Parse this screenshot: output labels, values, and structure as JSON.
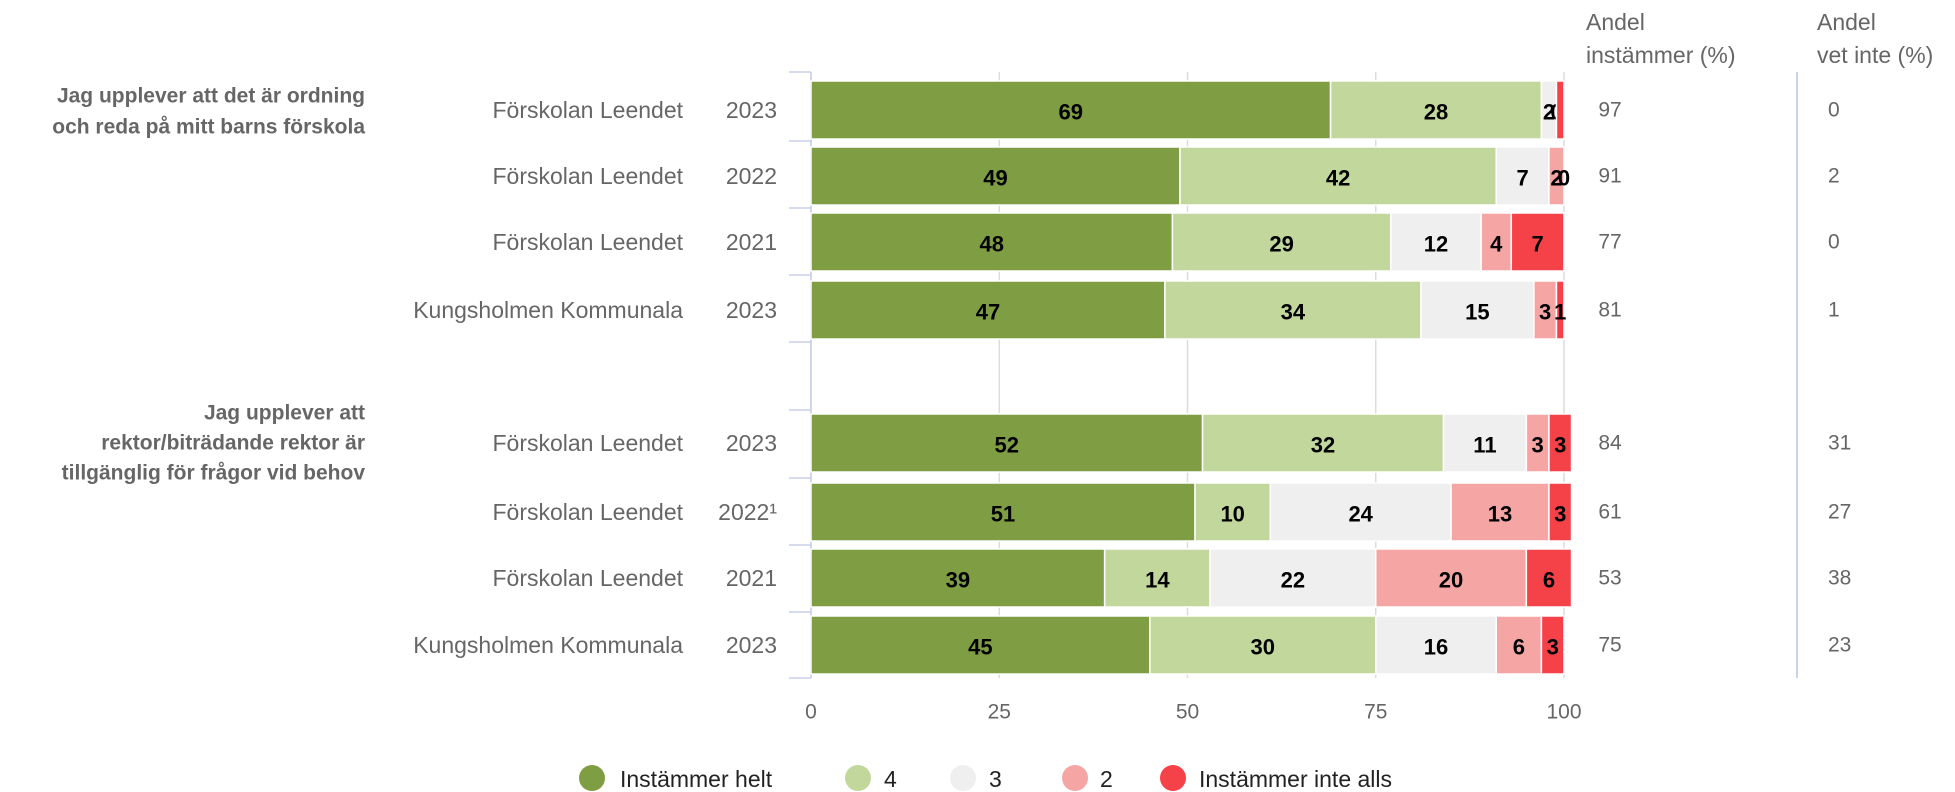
{
  "chart_data": {
    "type": "bar",
    "orientation": "horizontal",
    "stacked": true,
    "xlim": [
      0,
      100
    ],
    "xticks": [
      0,
      25,
      50,
      75,
      100
    ],
    "grid": true,
    "legend_position": "bottom",
    "column_headers": {
      "agree": [
        "Andel",
        "instämmer (%)"
      ],
      "dont_know": [
        "Andel",
        "vet inte (%)"
      ]
    },
    "series": [
      {
        "name": "Instämmer helt",
        "color": "#7f9e43"
      },
      {
        "name": "4",
        "color": "#c2d79b"
      },
      {
        "name": "3",
        "color": "#efefef"
      },
      {
        "name": "2",
        "color": "#f6a5a5"
      },
      {
        "name": "Instämmer inte alls",
        "color": "#f54248"
      }
    ],
    "groups": [
      {
        "question": [
          "Jag upplever att det är ordning",
          "och reda på mitt barns förskola"
        ],
        "rows": [
          {
            "unit": "Förskolan Leendet",
            "year": "2023",
            "values": [
              69,
              28,
              2,
              0,
              1
            ],
            "labels": [
              "69",
              "28",
              "2",
              "0",
              ""
            ],
            "agree": "97",
            "dont_know": "0"
          },
          {
            "unit": "Förskolan Leendet",
            "year": "2022",
            "values": [
              49,
              42,
              7,
              2,
              0
            ],
            "labels": [
              "49",
              "42",
              "7",
              "2",
              "0"
            ],
            "agree": "91",
            "dont_know": "2"
          },
          {
            "unit": "Förskolan Leendet",
            "year": "2021",
            "values": [
              48,
              29,
              12,
              4,
              7
            ],
            "labels": [
              "48",
              "29",
              "12",
              "4",
              "7"
            ],
            "agree": "77",
            "dont_know": "0"
          },
          {
            "unit": "Kungsholmen Kommunala",
            "year": "2023",
            "values": [
              47,
              34,
              15,
              3,
              1
            ],
            "labels": [
              "47",
              "34",
              "15",
              "3",
              "1"
            ],
            "agree": "81",
            "dont_know": "1"
          }
        ]
      },
      {
        "question": [
          "Jag upplever att",
          "rektor/biträdande rektor är",
          "tillgänglig för frågor vid behov"
        ],
        "rows": [
          {
            "unit": "Förskolan Leendet",
            "year": "2023",
            "values": [
              52,
              32,
              11,
              3,
              3
            ],
            "labels": [
              "52",
              "32",
              "11",
              "3",
              "3"
            ],
            "agree": "84",
            "dont_know": "31"
          },
          {
            "unit": "Förskolan Leendet",
            "year": "2022¹",
            "values": [
              51,
              10,
              24,
              13,
              3
            ],
            "labels": [
              "51",
              "10",
              "24",
              "13",
              "3"
            ],
            "agree": "61",
            "dont_know": "27"
          },
          {
            "unit": "Förskolan Leendet",
            "year": "2021",
            "values": [
              39,
              14,
              22,
              20,
              6
            ],
            "labels": [
              "39",
              "14",
              "22",
              "20",
              "6"
            ],
            "agree": "53",
            "dont_know": "38"
          },
          {
            "unit": "Kungsholmen Kommunala",
            "year": "2023",
            "values": [
              45,
              30,
              16,
              6,
              3
            ],
            "labels": [
              "45",
              "30",
              "16",
              "6",
              "3"
            ],
            "agree": "75",
            "dont_know": "23"
          }
        ]
      }
    ]
  }
}
